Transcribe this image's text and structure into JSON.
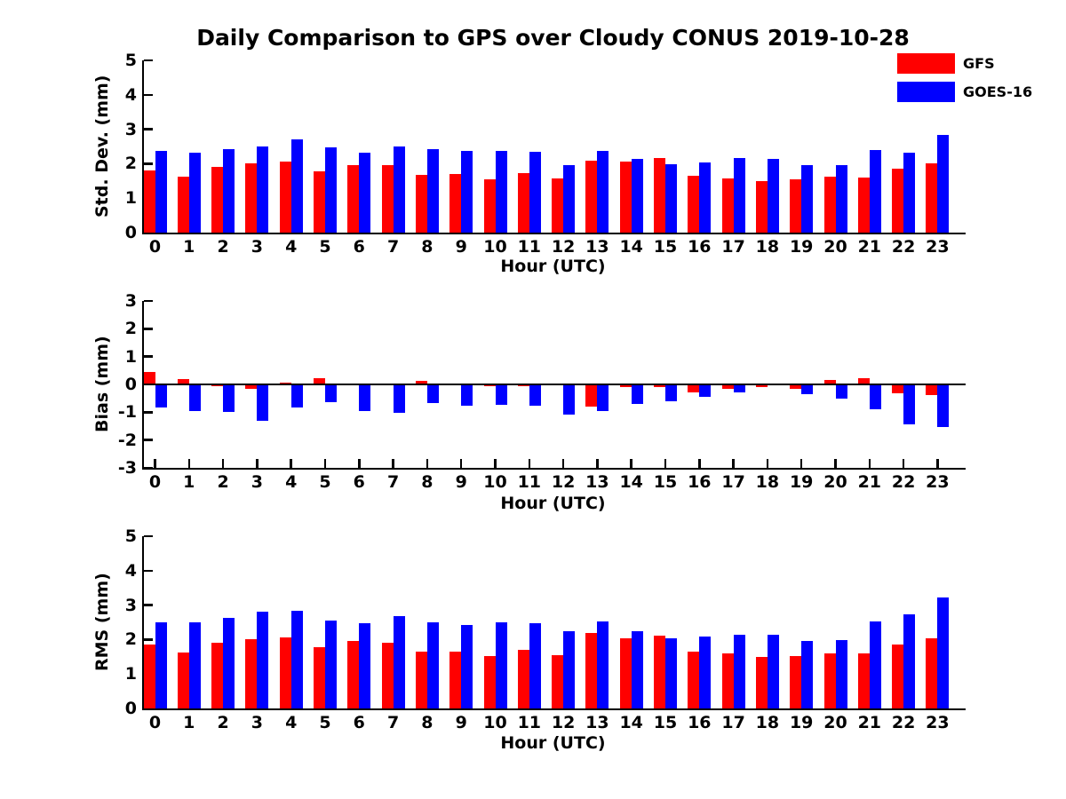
{
  "title": "Daily Comparison to GPS over Cloudy CONUS 2019-10-28",
  "legend": {
    "items": [
      {
        "label": "GFS",
        "color": "#ff0000"
      },
      {
        "label": "GOES-16",
        "color": "#0000ff"
      }
    ]
  },
  "colors": {
    "gfs": "#ff0000",
    "goes16": "#0000ff",
    "axis": "#000000"
  },
  "chart_data": [
    {
      "type": "bar",
      "ylabel": "Std. Dev. (mm)",
      "xlabel": "Hour (UTC)",
      "ylim": [
        0,
        5
      ],
      "yticks": [
        0,
        1,
        2,
        3,
        4,
        5
      ],
      "grid": false,
      "legend_position": "top-right",
      "categories": [
        "0",
        "1",
        "2",
        "3",
        "4",
        "5",
        "6",
        "7",
        "8",
        "9",
        "10",
        "11",
        "12",
        "13",
        "14",
        "15",
        "16",
        "17",
        "18",
        "19",
        "20",
        "21",
        "22",
        "23"
      ],
      "series": [
        {
          "name": "GFS",
          "color": "#ff0000",
          "values": [
            1.81,
            1.63,
            1.92,
            2.02,
            2.07,
            1.79,
            1.96,
            1.96,
            1.67,
            1.71,
            1.55,
            1.72,
            1.57,
            2.1,
            2.07,
            2.16,
            1.64,
            1.58,
            1.49,
            1.55,
            1.63,
            1.6,
            1.85,
            2.02
          ]
        },
        {
          "name": "GOES-16",
          "color": "#0000ff",
          "values": [
            2.36,
            2.32,
            2.43,
            2.5,
            2.7,
            2.48,
            2.33,
            2.51,
            2.42,
            2.36,
            2.38,
            2.35,
            1.96,
            2.36,
            2.14,
            1.98,
            2.04,
            2.16,
            2.14,
            1.95,
            1.95,
            2.4,
            2.32,
            2.83
          ]
        }
      ]
    },
    {
      "type": "bar",
      "ylabel": "Bias (mm)",
      "xlabel": "Hour (UTC)",
      "ylim": [
        -3,
        3
      ],
      "yticks": [
        -3,
        -2,
        -1,
        0,
        1,
        2,
        3
      ],
      "grid": false,
      "categories": [
        "0",
        "1",
        "2",
        "3",
        "4",
        "5",
        "6",
        "7",
        "8",
        "9",
        "10",
        "11",
        "12",
        "13",
        "14",
        "15",
        "16",
        "17",
        "18",
        "19",
        "20",
        "21",
        "22",
        "23"
      ],
      "series": [
        {
          "name": "GFS",
          "color": "#ff0000",
          "values": [
            0.45,
            0.18,
            -0.07,
            -0.17,
            0.06,
            0.22,
            0.0,
            0.0,
            0.13,
            0.0,
            -0.06,
            -0.05,
            -0.03,
            -0.8,
            -0.11,
            -0.08,
            -0.3,
            -0.15,
            -0.09,
            -0.16,
            0.15,
            0.21,
            -0.31,
            -0.39
          ]
        },
        {
          "name": "GOES-16",
          "color": "#0000ff",
          "values": [
            -0.83,
            -0.97,
            -1.0,
            -1.32,
            -0.84,
            -0.65,
            -0.97,
            -1.02,
            -0.67,
            -0.75,
            -0.72,
            -0.76,
            -1.08,
            -0.97,
            -0.7,
            -0.61,
            -0.46,
            -0.28,
            0.0,
            -0.35,
            -0.51,
            -0.88,
            -1.43,
            -1.53
          ]
        }
      ]
    },
    {
      "type": "bar",
      "ylabel": "RMS (mm)",
      "xlabel": "Hour (UTC)",
      "ylim": [
        0,
        5
      ],
      "yticks": [
        0,
        1,
        2,
        3,
        4,
        5
      ],
      "grid": false,
      "categories": [
        "0",
        "1",
        "2",
        "3",
        "4",
        "5",
        "6",
        "7",
        "8",
        "9",
        "10",
        "11",
        "12",
        "13",
        "14",
        "15",
        "16",
        "17",
        "18",
        "19",
        "20",
        "21",
        "22",
        "23"
      ],
      "series": [
        {
          "name": "GFS",
          "color": "#ff0000",
          "values": [
            1.85,
            1.63,
            1.9,
            2.0,
            2.05,
            1.79,
            1.95,
            1.92,
            1.64,
            1.66,
            1.51,
            1.69,
            1.55,
            2.2,
            2.03,
            2.12,
            1.65,
            1.6,
            1.49,
            1.52,
            1.6,
            1.61,
            1.85,
            2.03
          ]
        },
        {
          "name": "GOES-16",
          "color": "#0000ff",
          "values": [
            2.5,
            2.5,
            2.62,
            2.8,
            2.83,
            2.55,
            2.47,
            2.68,
            2.5,
            2.43,
            2.5,
            2.47,
            2.23,
            2.52,
            2.23,
            2.03,
            2.08,
            2.13,
            2.14,
            1.95,
            1.98,
            2.52,
            2.73,
            3.22
          ]
        }
      ]
    }
  ]
}
